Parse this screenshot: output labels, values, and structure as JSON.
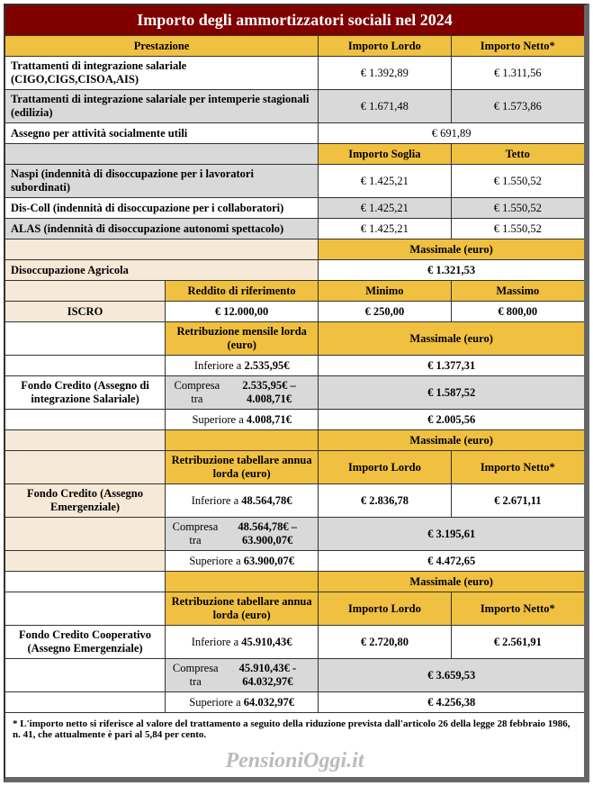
{
  "title": "Importo degli ammortizzatori sociali nel 2024",
  "headers": {
    "prestazione": "Prestazione",
    "lordo": "Importo Lordo",
    "netto": "Importo Netto*",
    "soglia": "Importo Soglia",
    "tetto": "Tetto",
    "massimale": "Massimale (euro)",
    "minimo": "Minimo",
    "massimo": "Massimo"
  },
  "r1": {
    "label": "Trattamenti di integrazione salariale (CIGO,CIGS,CISOA,AIS)",
    "lordo": "€ 1.392,89",
    "netto": "€ 1.311,56"
  },
  "r2": {
    "label": "Trattamenti di integrazione salariale per intemperie stagionali (edilizia)",
    "lordo": "€ 1.671,48",
    "netto": "€ 1.573,86"
  },
  "r3": {
    "label": "Assegno per attività socialmente utili",
    "val": "€ 691,89"
  },
  "r4": {
    "label": "Naspi (indennità di disoccupazione per i lavoratori subordinati)",
    "soglia": "€ 1.425,21",
    "tetto": "€ 1.550,52"
  },
  "r5": {
    "label": "Dis-Coll (indennità di disoccupazione per i collaboratori)",
    "soglia": "€ 1.425,21",
    "tetto": "€ 1.550,52"
  },
  "r6": {
    "label": "ALAS (indennità di disoccupazione autonomi spettacolo)",
    "soglia": "€ 1.425,21",
    "tetto": "€ 1.550,52"
  },
  "r7": {
    "label": "Disoccupazione Agricola",
    "val": "€ 1.321,53"
  },
  "iscro": {
    "label": "ISCRO",
    "refhdr": "Reddito di riferimento",
    "ref": "€ 12.000,00",
    "min": "€ 250,00",
    "max": "€ 800,00"
  },
  "fc1": {
    "label": "Fondo Credito (Assegno di integrazione Salariale)",
    "colhdr": "Retribuzione mensile lorda (euro)",
    "rows": [
      {
        "a": "Inferiore a",
        "b": "2.535,95€",
        "v": "€ 1.377,31"
      },
      {
        "a": "Compresa tra",
        "b": "2.535,95€ – 4.008,71€",
        "v": "€ 1.587,52"
      },
      {
        "a": "Superiore a",
        "b": "4.008,71€",
        "v": "€ 2.005,56"
      }
    ]
  },
  "fc2": {
    "label": "Fondo Credito (Assegno Emergenziale)",
    "colhdr": "Retribuzione tabellare annua lorda (euro)",
    "rows": [
      {
        "a": "Inferiore a",
        "b": "48.564,78€",
        "lordo": "€ 2.836,78",
        "netto": "€ 2.671,11"
      },
      {
        "a": "Compresa tra",
        "b": "48.564,78€ – 63.900,07€",
        "v": "€ 3.195,61"
      },
      {
        "a": "Superiore a",
        "b": "63.900,07€",
        "v": "€ 4.472,65"
      }
    ]
  },
  "fc3": {
    "label": "Fondo Credito Cooperativo (Assegno Emergenziale)",
    "colhdr": "Retribuzione tabellare annua lorda (euro)",
    "rows": [
      {
        "a": "Inferiore a",
        "b": "45.910,43€",
        "lordo": "€ 2.720,80",
        "netto": "€ 2.561,91"
      },
      {
        "a": "Compresa tra",
        "b": "45.910,43€ - 64.032,97€",
        "v": "€ 3.659,53"
      },
      {
        "a": "Superiore a",
        "b": "64.032,97€",
        "v": "€ 4.256,38"
      }
    ]
  },
  "footnote": "* L'importo netto si riferisce al valore del trattamento a seguito della riduzione prevista dall'articolo 26 della legge 28 febbraio 1986, n. 41, che attualmente è pari al 5,84 per cento.",
  "brand": "PensioniOggi.it"
}
